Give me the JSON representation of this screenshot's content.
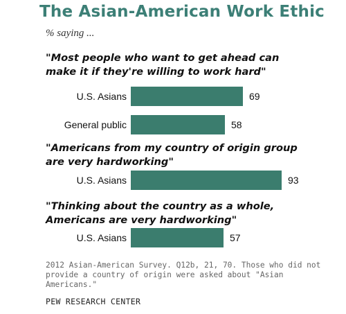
{
  "title": "The Asian-American Work Ethic",
  "subtitle": "% saying ...",
  "note": "2012 Asian-American Survey. Q12b, 21, 70. Those who did not provide a country of origin were asked about \"Asian Americans.\"",
  "source": "PEW RESEARCH CENTER",
  "colors": {
    "bar": "#3b7d6e",
    "title": "#3c7f76"
  },
  "chart_data": {
    "type": "bar",
    "orientation": "horizontal",
    "ylim": [
      0,
      100
    ],
    "groups": [
      {
        "question": [
          "\"Most people who want to get ahead can",
          "make it if they're willing to work hard\""
        ],
        "rows": [
          {
            "label": "U.S. Asians",
            "value": 69
          },
          {
            "label": "General public",
            "value": 58
          }
        ]
      },
      {
        "question": [
          "\"Americans from my country of origin group",
          "are very hardworking\""
        ],
        "rows": [
          {
            "label": "U.S. Asians",
            "value": 93
          }
        ]
      },
      {
        "question": [
          "\"Thinking about the country as a whole,",
          "Americans are very hardworking\""
        ],
        "rows": [
          {
            "label": "U.S. Asians",
            "value": 57
          }
        ]
      }
    ]
  }
}
